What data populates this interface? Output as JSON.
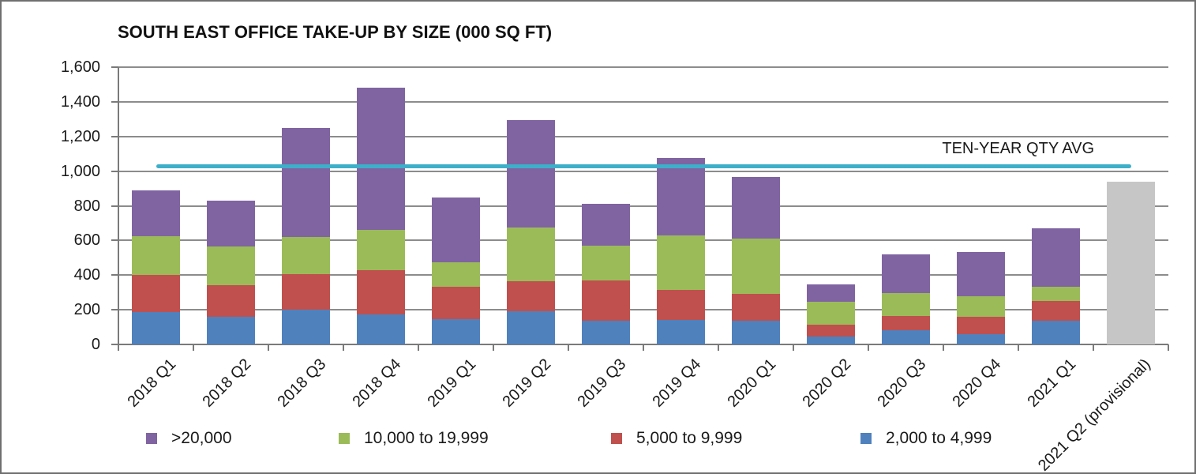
{
  "chart_data": {
    "type": "bar",
    "stacked": true,
    "title": "SOUTH EAST OFFICE TAKE-UP BY SIZE (000 SQ FT)",
    "categories": [
      "2018 Q1",
      "2018 Q2",
      "2018 Q3",
      "2018 Q4",
      "2019 Q1",
      "2019 Q2",
      "2019 Q3",
      "2019 Q4",
      "2020 Q1",
      "2020 Q2",
      "2020 Q3",
      "2020 Q4",
      "2021 Q1",
      "2021 Q2 (provisional)"
    ],
    "series": [
      {
        "name": "2,000 to 4,999",
        "color": "#4F81BD",
        "values": [
          185,
          160,
          200,
          175,
          145,
          190,
          135,
          140,
          135,
          45,
          80,
          60,
          135,
          0
        ]
      },
      {
        "name": "5,000 to 9,999",
        "color": "#C0504D",
        "values": [
          215,
          180,
          205,
          255,
          190,
          175,
          235,
          175,
          155,
          70,
          85,
          100,
          115,
          0
        ]
      },
      {
        "name": "10,000 to 19,999",
        "color": "#9BBB59",
        "values": [
          225,
          225,
          215,
          230,
          140,
          310,
          200,
          315,
          320,
          130,
          130,
          120,
          85,
          0
        ]
      },
      {
        "name": ">20,000",
        "color": "#8064A2",
        "values": [
          265,
          265,
          630,
          820,
          375,
          620,
          240,
          445,
          355,
          100,
          225,
          255,
          335,
          0
        ]
      }
    ],
    "totals": [
      890,
      830,
      1250,
      1480,
      850,
      1295,
      810,
      1075,
      965,
      345,
      520,
      535,
      670,
      940
    ],
    "provisional": {
      "category": "2021 Q2 (provisional)",
      "value": 940,
      "color": "#C6C6C6"
    },
    "reference_line": {
      "label": "TEN-YEAR QTY AVG",
      "value": 1030,
      "color": "#3DAFC9"
    },
    "ylim": [
      0,
      1600
    ],
    "ytick_step": 200,
    "ytick_labels": [
      "0",
      "200",
      "400",
      "600",
      "800",
      "1,000",
      "1,200",
      "1,400",
      "1,600"
    ],
    "grid": true,
    "legend_position": "bottom",
    "legend_order": [
      ">20,000",
      "10,000 to 19,999",
      "5,000 to 9,999",
      "2,000 to 4,999"
    ]
  }
}
